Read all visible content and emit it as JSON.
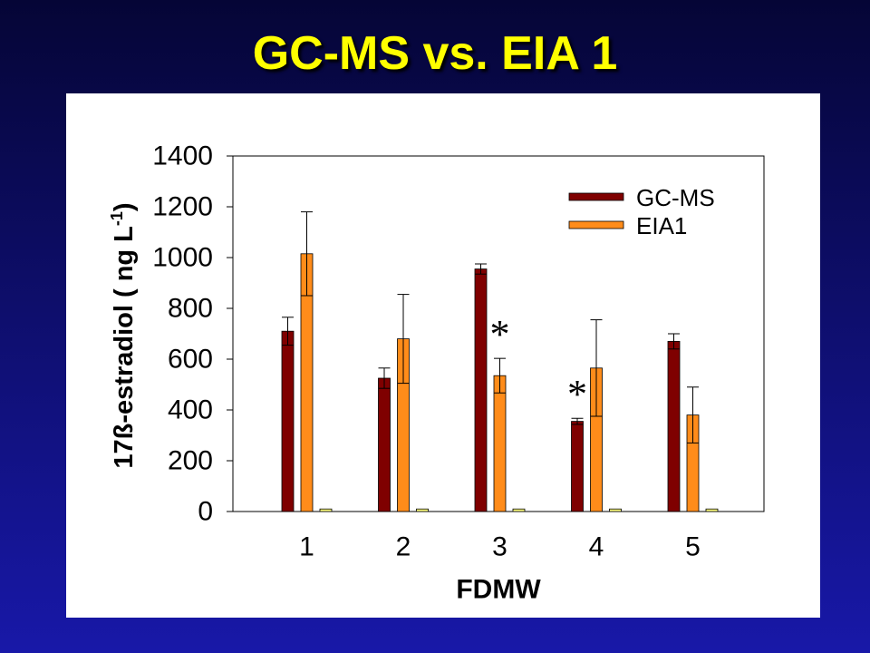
{
  "slide": {
    "title": "GC-MS vs. EIA 1"
  },
  "colors": {
    "background_top": "#050536",
    "background_bottom": "#1818a8",
    "title": "#FFFF00",
    "panel": "#FFFFFF"
  },
  "chart_data": {
    "type": "bar",
    "categories": [
      "1",
      "2",
      "3",
      "4",
      "5"
    ],
    "xlabel": "FDMW",
    "ylabel": {
      "main": "17ß-estradiol ( ng L",
      "superscript": "-1",
      "end": ")"
    },
    "ylim": [
      0,
      1400
    ],
    "yticks": [
      0,
      200,
      400,
      600,
      800,
      1000,
      1200,
      1400
    ],
    "grid": false,
    "legend_position": "top-right",
    "series": [
      {
        "name": "GC-MS",
        "color": "#7F0000",
        "values": [
          710,
          525,
          955,
          355,
          670
        ],
        "errors": [
          55,
          40,
          20,
          12,
          30
        ]
      },
      {
        "name": "EIA1",
        "color": "#FF8C1A",
        "values": [
          1015,
          680,
          535,
          565,
          380
        ],
        "errors": [
          165,
          175,
          68,
          190,
          110
        ]
      },
      {
        "color": "#FFFF80",
        "values": [
          10,
          10,
          10,
          10,
          10
        ]
      }
    ],
    "annotations": [
      {
        "text": "*",
        "category": "3",
        "series": "EIA1"
      },
      {
        "text": "*",
        "category": "4",
        "series": "GC-MS"
      }
    ]
  }
}
